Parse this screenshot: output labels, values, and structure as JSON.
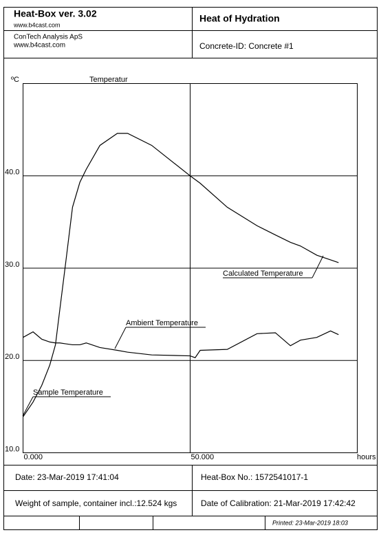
{
  "header": {
    "product": "Heat-Box ver. 3.02",
    "product_url": "www.b4cast.com",
    "report_title": "Heat of Hydration",
    "company": "ConTech Analysis ApS",
    "company_url": "www.b4cast.com",
    "concrete_id": "Concrete-ID: Concrete #1"
  },
  "chart_data": {
    "type": "line",
    "title": "Temperatur",
    "x_label": "hours",
    "y_label": "ºC",
    "x": [
      0,
      3,
      5.6,
      8,
      9.7,
      11,
      12.8,
      14.8,
      17,
      18.9,
      23,
      28.2,
      31.3,
      38.5,
      50,
      51.5,
      53,
      61.1,
      70,
      75.5,
      80,
      83,
      87.9,
      92,
      94.4
    ],
    "series": [
      {
        "name": "Sample Temperature",
        "color": "#000000",
        "values": [
          13.9,
          15.5,
          17.3,
          19.5,
          21.7,
          25.5,
          30.7,
          36.6,
          39.3,
          40.7,
          43.3,
          44.6,
          44.6,
          43.3,
          40.0,
          null,
          null,
          null,
          null,
          null,
          null,
          null,
          null,
          null,
          null
        ]
      },
      {
        "name": "Calculated Temperature",
        "color": "#000000",
        "values": [
          null,
          null,
          null,
          null,
          null,
          null,
          null,
          null,
          null,
          null,
          null,
          null,
          null,
          null,
          40.0,
          39.6,
          39.2,
          36.6,
          34.6,
          33.6,
          32.8,
          32.4,
          31.4,
          30.9,
          30.6
        ]
      },
      {
        "name": "Ambient Temperature",
        "color": "#000000",
        "values": [
          22.5,
          23.1,
          22.3,
          22.0,
          21.9,
          21.9,
          21.8,
          21.7,
          21.7,
          21.9,
          21.4,
          21.1,
          20.9,
          20.6,
          20.5,
          20.3,
          21.1,
          21.2,
          22.9,
          23.0,
          21.6,
          22.2,
          22.5,
          23.2,
          22.8
        ]
      }
    ],
    "xlim": [
      0,
      100
    ],
    "ylim": [
      10,
      50
    ],
    "xticks": [
      {
        "value": 0,
        "label": "0.000"
      },
      {
        "value": 50,
        "label": "50.000"
      }
    ],
    "yticks": [
      {
        "value": 10,
        "label": "10.0"
      },
      {
        "value": 20,
        "label": "20.0"
      },
      {
        "value": 30,
        "label": "30.0"
      },
      {
        "value": 40,
        "label": "40.0"
      }
    ],
    "grid": true
  },
  "footer": {
    "date": "Date: 23-Mar-2019 17:41:04",
    "heatbox_no": "Heat-Box No.:  1572541017-1",
    "weight": "Weight of sample, container incl.:12.524 kgs",
    "calibration": "Date of Calibration:  21-Mar-2019 17:42:42",
    "printed": "Printed: 23-Mar-2019 18:03"
  }
}
